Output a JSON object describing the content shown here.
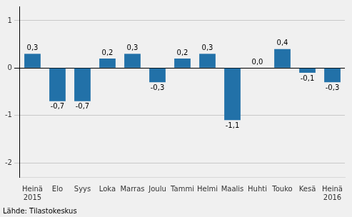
{
  "chart_data": {
    "type": "bar",
    "categories": [
      "Heinä\n2015",
      "Elo",
      "Syys",
      "Loka",
      "Marras",
      "Joulu",
      "Tammi",
      "Helmi",
      "Maalis",
      "Huhti",
      "Touko",
      "Kesä",
      "Heinä\n2016"
    ],
    "values": [
      0.3,
      -0.7,
      -0.7,
      0.2,
      0.3,
      -0.3,
      0.2,
      0.3,
      -1.1,
      0.0,
      0.4,
      -0.1,
      -0.3
    ],
    "value_labels": [
      "0,3",
      "-0,7",
      "-0,7",
      "0,2",
      "0,3",
      "-0,3",
      "0,2",
      "0,3",
      "-1,1",
      "0,0",
      "0,4",
      "-0,1",
      "-0,3"
    ],
    "data_labels": true,
    "color": "#2271a8",
    "ylim": [
      -2.3,
      1.3
    ],
    "yticks": [
      -2,
      -1,
      0,
      1
    ],
    "grid": true,
    "annotation": "Lähde: Tilastokeskus"
  }
}
